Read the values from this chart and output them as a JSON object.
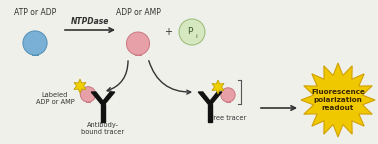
{
  "bg_color": "#f0f0eb",
  "nucleotide_atp_color": "#7ab0d5",
  "nucleotide_atp_border": "#5090b5",
  "nucleotide_adp_color": "#e8a0a8",
  "nucleotide_adp_border": "#c87880",
  "pi_color": "#d5e8c0",
  "pi_border": "#a0c080",
  "antibody_color": "#111111",
  "star_color": "#f0d000",
  "star_edge": "#c0a000",
  "arrow_color": "#333333",
  "burst_color": "#f0c800",
  "burst_edge": "#d0a000",
  "text_label_atp": "ATP or ADP",
  "text_label_adp": "ADP or AMP",
  "text_label_ntpdase": "NTPDase",
  "text_label_pi": "P",
  "text_label_pi_sub": "i",
  "text_label_plus": "+",
  "text_label_bound": "Labeled\nADP or AMP",
  "text_label_antibody": "Antibody-\nbound tracer",
  "text_label_free": "Free tracer",
  "text_label_fluor": "Fluorescence\npolarization\nreadout",
  "font_size_label": 5.5,
  "font_size_small": 4.8,
  "font_size_burst": 5.2
}
